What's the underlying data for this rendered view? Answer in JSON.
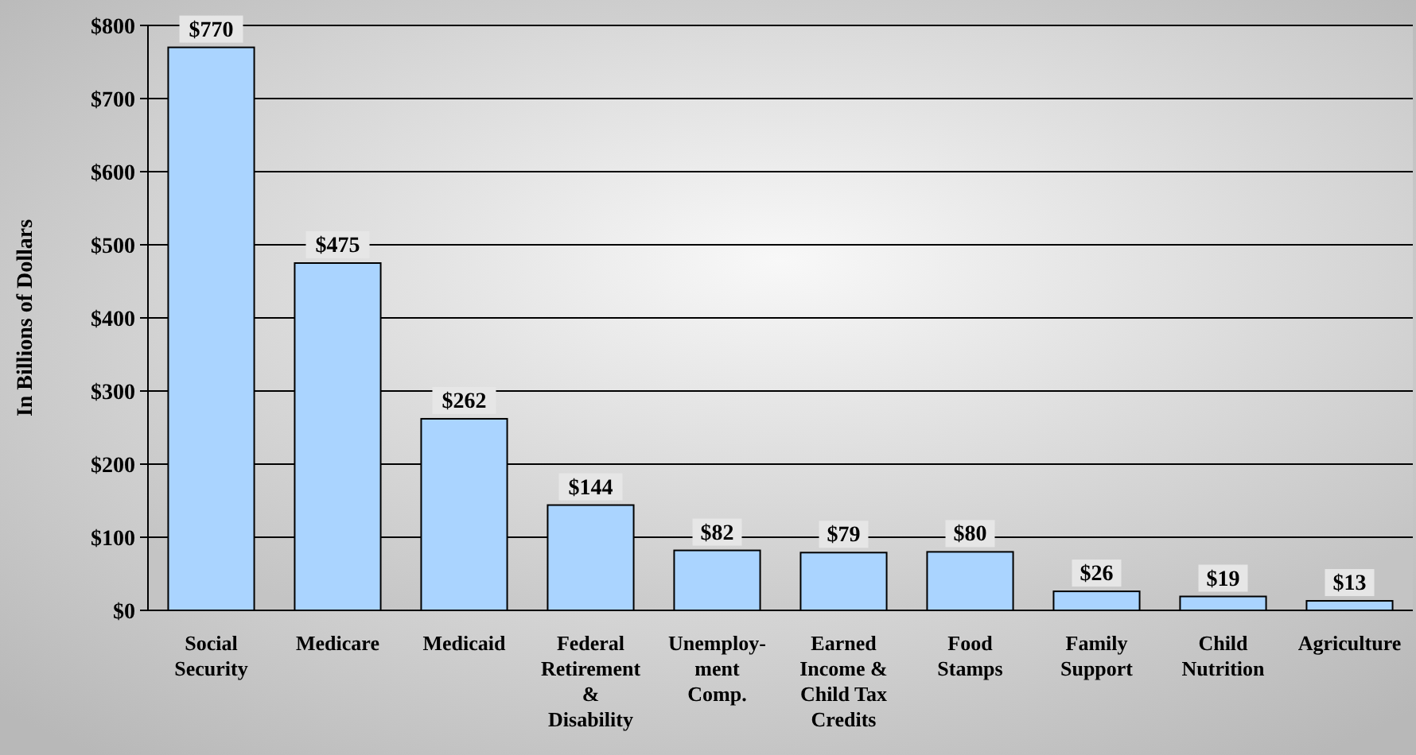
{
  "chart_data": {
    "type": "bar",
    "ylabel": "In Billions of Dollars",
    "categories": [
      "Social\nSecurity",
      "Medicare",
      "Medicaid",
      "Federal\nRetirement\n&\nDisability",
      "Unemploy-\nment\nComp.",
      "Earned\nIncome &\nChild Tax\nCredits",
      "Food\nStamps",
      "Family\nSupport",
      "Child\nNutrition",
      "Agriculture"
    ],
    "values": [
      770,
      475,
      262,
      144,
      82,
      79,
      80,
      26,
      19,
      13
    ],
    "value_labels": [
      "$770",
      "$475",
      "$262",
      "$144",
      "$82",
      "$79",
      "$80",
      "$26",
      "$19",
      "$13"
    ],
    "color": "#aad4ff",
    "ylim": [
      0,
      800
    ],
    "yticks": [
      {
        "value": 0,
        "label": "$0"
      },
      {
        "value": 100,
        "label": "$100"
      },
      {
        "value": 200,
        "label": "$200"
      },
      {
        "value": 300,
        "label": "$300"
      },
      {
        "value": 400,
        "label": "$400"
      },
      {
        "value": 500,
        "label": "$500"
      },
      {
        "value": 600,
        "label": "$600"
      },
      {
        "value": 700,
        "label": "$700"
      },
      {
        "value": 800,
        "label": "$800"
      }
    ],
    "grid": "y"
  }
}
